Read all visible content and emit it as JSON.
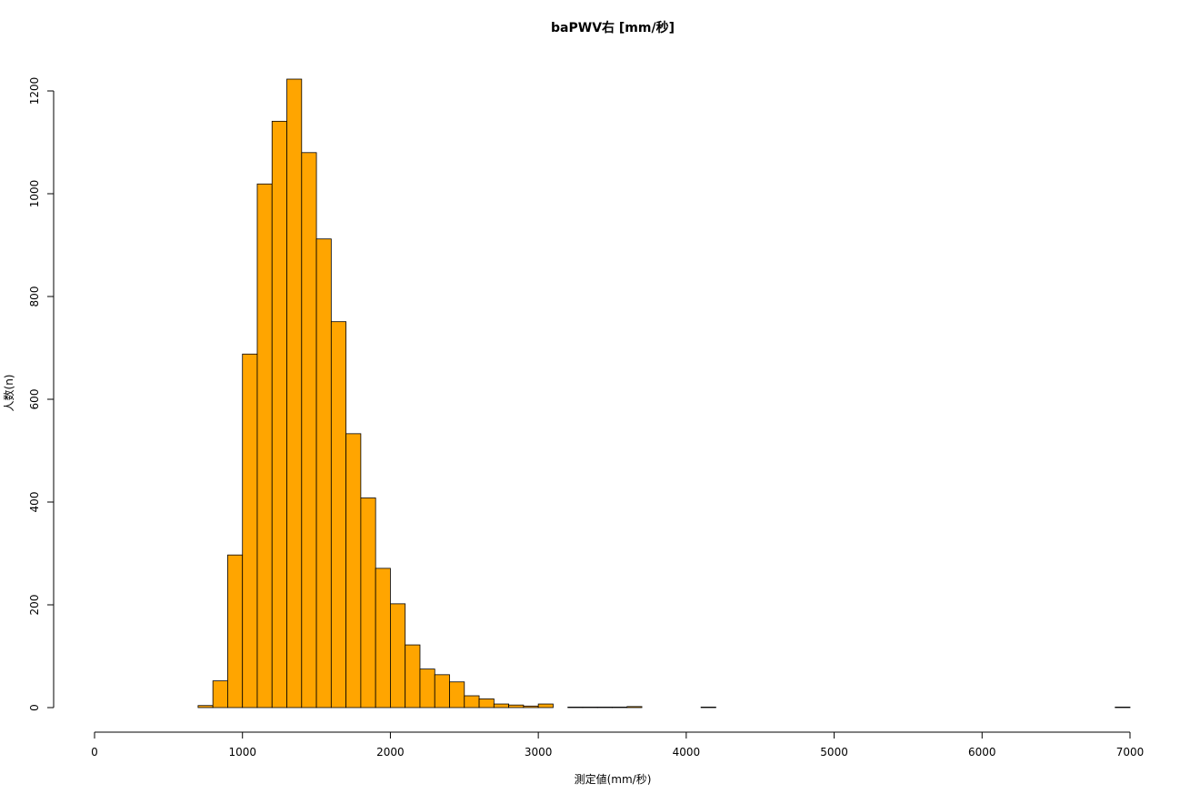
{
  "chart_data": {
    "type": "histogram",
    "title": "baPWV右 [mm/秒]",
    "x_label": "測定値(mm/秒)",
    "y_label": "人数(n)",
    "color": "#ffa500",
    "bins": [
      700,
      800,
      900,
      1000,
      1100,
      1200,
      1300,
      1400,
      1500,
      1600,
      1700,
      1800,
      1900,
      2000,
      2100,
      2200,
      2300,
      2400,
      2500,
      2600,
      2700,
      2800,
      2900,
      3000,
      3100,
      3200,
      3300,
      3400,
      3500,
      3600,
      3700,
      3800,
      3900,
      4000,
      4100,
      4200,
      4300,
      4400,
      4500,
      4600,
      4700,
      4800,
      4900,
      5000,
      5100,
      5200,
      5300,
      5400,
      5500,
      5600,
      5700,
      5800,
      5900,
      6000,
      6100,
      6200,
      6300,
      6400,
      6500,
      6600,
      6700,
      6800,
      6900,
      7000
    ],
    "values": [
      4,
      52,
      297,
      688,
      1019,
      1141,
      1223,
      1080,
      912,
      751,
      533,
      408,
      271,
      202,
      122,
      75,
      64,
      50,
      23,
      17,
      7,
      5,
      3,
      7,
      0,
      1,
      1,
      1,
      1,
      2,
      0,
      0,
      0,
      0,
      1,
      0,
      0,
      0,
      0,
      0,
      0,
      0,
      0,
      0,
      0,
      0,
      0,
      0,
      0,
      0,
      0,
      0,
      0,
      0,
      0,
      0,
      0,
      0,
      0,
      0,
      0,
      0,
      1
    ],
    "xlim": [
      0,
      7000
    ],
    "xticks": [
      0,
      1000,
      2000,
      3000,
      4000,
      5000,
      6000,
      7000
    ],
    "ylim": [
      0,
      1200
    ],
    "yticks": [
      0,
      200,
      400,
      600,
      800,
      1000,
      1200
    ]
  }
}
